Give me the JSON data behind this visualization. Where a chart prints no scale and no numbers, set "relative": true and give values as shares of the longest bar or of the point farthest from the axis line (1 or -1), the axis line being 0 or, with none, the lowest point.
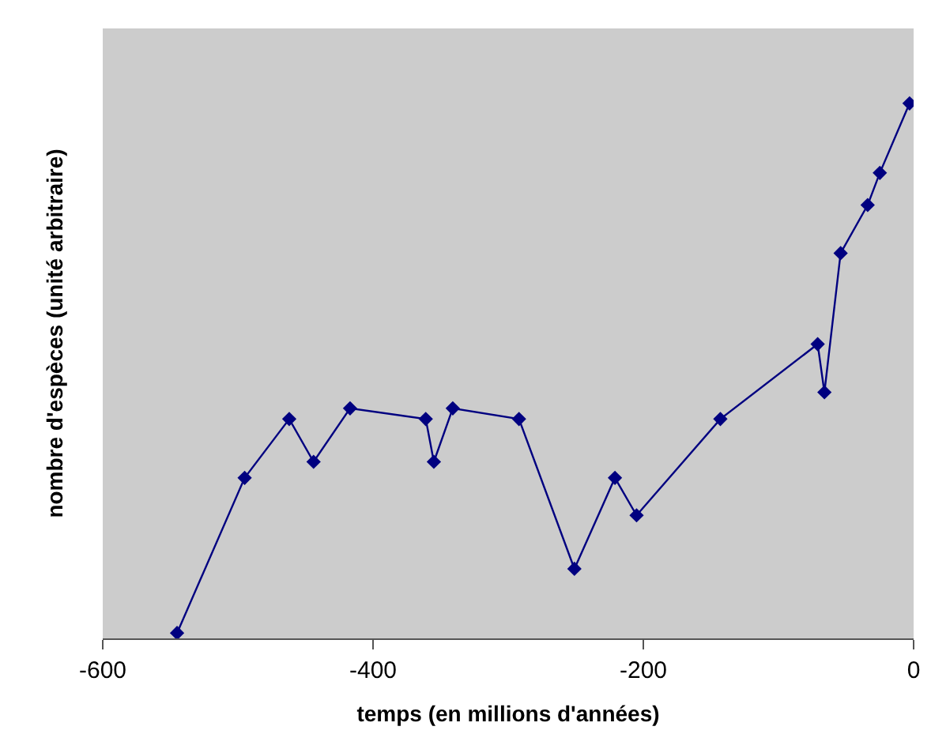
{
  "chart_data": {
    "type": "line",
    "xlabel": "temps (en millions d'années)",
    "ylabel": "nombre d'espèces (unité arbitraire)",
    "relative": true,
    "x": [
      -545,
      -495,
      -462,
      -444,
      -417,
      -361,
      -355,
      -341,
      -292,
      -251,
      -221,
      -205,
      -143,
      -71,
      -66,
      -54,
      -34,
      -25,
      -3
    ],
    "series": [
      {
        "color": "#000080",
        "values": [
          0.01,
          0.3,
          0.41,
          0.33,
          0.43,
          0.41,
          0.33,
          0.43,
          0.41,
          0.13,
          0.3,
          0.23,
          0.41,
          0.55,
          0.46,
          0.72,
          0.81,
          0.87,
          1.0
        ]
      }
    ],
    "xlim": [
      -600,
      0
    ],
    "xticks": [
      -600,
      -400,
      -200,
      0
    ],
    "grid": false,
    "marker": "diamond",
    "line_style": "solid"
  }
}
